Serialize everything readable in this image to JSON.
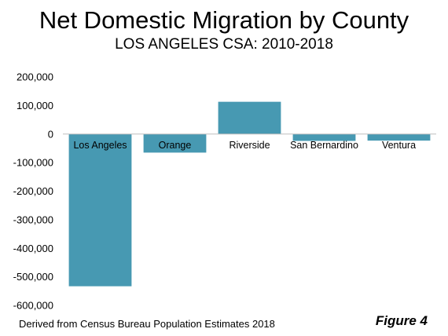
{
  "chart_data": {
    "type": "bar",
    "title": "Net Domestic Migration by County",
    "subtitle": "LOS ANGELES CSA: 2010-2018",
    "categories": [
      "Los Angeles",
      "Orange",
      "Riverside",
      "San Bernardino",
      "Ventura"
    ],
    "values": [
      -533000,
      -65000,
      113000,
      -24000,
      -23000
    ],
    "ylim": [
      -600000,
      200000
    ],
    "yticks": [
      200000,
      100000,
      0,
      -100000,
      -200000,
      -300000,
      -400000,
      -500000,
      -600000
    ],
    "ytick_labels": [
      "200,000",
      "100,000",
      "0",
      "-100,000",
      "-200,000",
      "-300,000",
      "-400,000",
      "-500,000",
      "-600,000"
    ],
    "xlabel": "",
    "ylabel": "",
    "grid": false,
    "legend": "none",
    "bar_color": "#4799b2"
  },
  "footer": {
    "source": "Derived from Census Bureau Population Estimates 2018",
    "figure_label": "Figure 4"
  }
}
